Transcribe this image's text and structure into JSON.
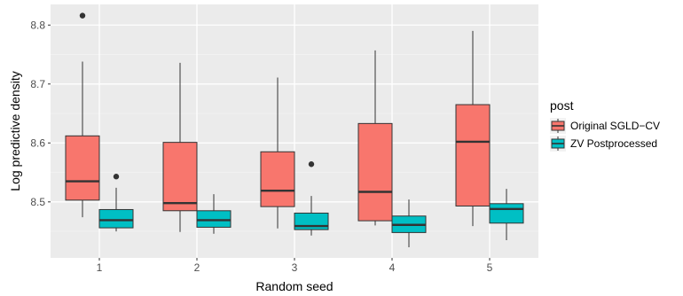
{
  "chart_data": {
    "type": "boxplot",
    "xlabel": "Random seed",
    "ylabel": "Log predictive density",
    "categories": [
      "1",
      "2",
      "3",
      "4",
      "5"
    ],
    "ylim": [
      8.405,
      8.835
    ],
    "yticks": [
      8.5,
      8.6,
      8.7,
      8.8
    ],
    "ytick_labels": [
      "8.5",
      "8.6",
      "8.7",
      "8.8"
    ],
    "grid": true,
    "legend": {
      "title": "post",
      "position": "right"
    },
    "series": [
      {
        "name": "Original SGLD−CV",
        "color": "#F8766D",
        "boxes": [
          {
            "category": "1",
            "whisker_low": 8.474,
            "q1": 8.503,
            "median": 8.535,
            "q3": 8.612,
            "whisker_high": 8.738,
            "outliers": [
              8.816
            ]
          },
          {
            "category": "2",
            "whisker_low": 8.449,
            "q1": 8.485,
            "median": 8.498,
            "q3": 8.601,
            "whisker_high": 8.736,
            "outliers": []
          },
          {
            "category": "3",
            "whisker_low": 8.455,
            "q1": 8.492,
            "median": 8.519,
            "q3": 8.585,
            "whisker_high": 8.711,
            "outliers": []
          },
          {
            "category": "4",
            "whisker_low": 8.46,
            "q1": 8.468,
            "median": 8.517,
            "q3": 8.633,
            "whisker_high": 8.757,
            "outliers": []
          },
          {
            "category": "5",
            "whisker_low": 8.459,
            "q1": 8.493,
            "median": 8.602,
            "q3": 8.665,
            "whisker_high": 8.79,
            "outliers": []
          }
        ]
      },
      {
        "name": "ZV Postprocessed",
        "color": "#00BFC4",
        "boxes": [
          {
            "category": "1",
            "whisker_low": 8.45,
            "q1": 8.456,
            "median": 8.469,
            "q3": 8.487,
            "whisker_high": 8.524,
            "outliers": [
              8.543
            ]
          },
          {
            "category": "2",
            "whisker_low": 8.446,
            "q1": 8.457,
            "median": 8.469,
            "q3": 8.485,
            "whisker_high": 8.513,
            "outliers": []
          },
          {
            "category": "3",
            "whisker_low": 8.443,
            "q1": 8.453,
            "median": 8.459,
            "q3": 8.481,
            "whisker_high": 8.51,
            "outliers": [
              8.564
            ]
          },
          {
            "category": "4",
            "whisker_low": 8.423,
            "q1": 8.448,
            "median": 8.461,
            "q3": 8.476,
            "whisker_high": 8.504,
            "outliers": []
          },
          {
            "category": "5",
            "whisker_low": 8.435,
            "q1": 8.464,
            "median": 8.488,
            "q3": 8.497,
            "whisker_high": 8.522,
            "outliers": []
          }
        ]
      }
    ]
  }
}
